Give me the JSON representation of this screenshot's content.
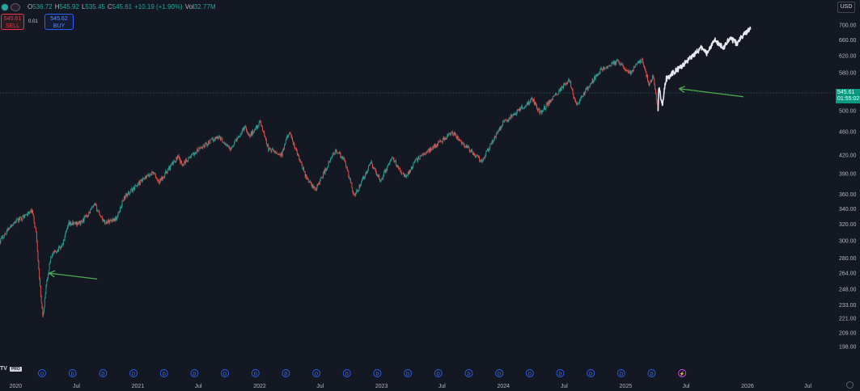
{
  "header": {
    "open_label": "O",
    "open": "536.72",
    "high_label": "H",
    "high": "545.92",
    "low_label": "L",
    "low": "535.45",
    "close_label": "C",
    "close": "545.61",
    "change": "+10.19 (+1.90%)",
    "vol_label": "Vol",
    "vol": "32.77M"
  },
  "trade": {
    "sell_price": "545.61",
    "sell_label": "SELL",
    "quantity": "0.01",
    "buy_price": "545.62",
    "buy_label": "BUY"
  },
  "currency": "USD",
  "current_price": {
    "price": "545.61",
    "countdown": "01:55:02"
  },
  "logo": {
    "text": "TV",
    "badge": "PRO"
  },
  "colors": {
    "bg": "#141823",
    "up": "#26a69a",
    "down": "#ef5350",
    "projection": "#e8e8ee",
    "arrow": "#4caf50",
    "axis_text": "#b2b5be"
  },
  "chart_data": {
    "type": "candlestick",
    "y_scale": "log",
    "ylim": [
      196,
      720
    ],
    "xlim": [
      "2019-11-15",
      "2026-09-15"
    ],
    "y_ticks": [
      "700.00",
      "660.00",
      "620.00",
      "580.00",
      "540.00",
      "500.00",
      "460.00",
      "420.00",
      "390.00",
      "360.00",
      "340.00",
      "320.00",
      "300.00",
      "280.00",
      "264.00",
      "248.00",
      "233.00",
      "221.00",
      "209.00",
      "198.00"
    ],
    "x_ticks": [
      {
        "label": "2020",
        "date": "2020-01-01"
      },
      {
        "label": "Jul",
        "date": "2020-07-01"
      },
      {
        "label": "2021",
        "date": "2021-01-01"
      },
      {
        "label": "Jul",
        "date": "2021-07-01"
      },
      {
        "label": "2022",
        "date": "2022-01-01"
      },
      {
        "label": "Jul",
        "date": "2022-07-01"
      },
      {
        "label": "2023",
        "date": "2023-01-01"
      },
      {
        "label": "Jul",
        "date": "2023-07-01"
      },
      {
        "label": "2024",
        "date": "2024-01-01"
      },
      {
        "label": "Jul",
        "date": "2024-07-01"
      },
      {
        "label": "2025",
        "date": "2025-01-01"
      },
      {
        "label": "Jul",
        "date": "2025-07-01"
      },
      {
        "label": "2026",
        "date": "2026-01-01"
      },
      {
        "label": "Jul",
        "date": "2026-07-01"
      }
    ],
    "price_path": [
      [
        "2019-11-15",
        300
      ],
      [
        "2019-12-20",
        320
      ],
      [
        "2020-02-19",
        337
      ],
      [
        "2020-03-02",
        310
      ],
      [
        "2020-03-09",
        275
      ],
      [
        "2020-03-16",
        240
      ],
      [
        "2020-03-23",
        222
      ],
      [
        "2020-04-01",
        250
      ],
      [
        "2020-04-15",
        282
      ],
      [
        "2020-05-20",
        295
      ],
      [
        "2020-06-08",
        320
      ],
      [
        "2020-07-15",
        322
      ],
      [
        "2020-08-25",
        345
      ],
      [
        "2020-09-23",
        322
      ],
      [
        "2020-10-30",
        328
      ],
      [
        "2020-11-20",
        355
      ],
      [
        "2020-12-31",
        374
      ],
      [
        "2021-02-15",
        393
      ],
      [
        "2021-03-04",
        377
      ],
      [
        "2021-04-30",
        417
      ],
      [
        "2021-05-12",
        405
      ],
      [
        "2021-07-15",
        435
      ],
      [
        "2021-08-30",
        452
      ],
      [
        "2021-10-04",
        430
      ],
      [
        "2021-11-18",
        470
      ],
      [
        "2021-12-01",
        452
      ],
      [
        "2022-01-03",
        478
      ],
      [
        "2022-01-27",
        430
      ],
      [
        "2022-03-08",
        420
      ],
      [
        "2022-03-29",
        460
      ],
      [
        "2022-05-20",
        385
      ],
      [
        "2022-06-16",
        366
      ],
      [
        "2022-08-16",
        428
      ],
      [
        "2022-09-12",
        410
      ],
      [
        "2022-10-12",
        357
      ],
      [
        "2022-11-30",
        407
      ],
      [
        "2022-12-28",
        380
      ],
      [
        "2023-02-02",
        415
      ],
      [
        "2023-03-13",
        385
      ],
      [
        "2023-04-15",
        412
      ],
      [
        "2023-06-15",
        438
      ],
      [
        "2023-07-31",
        458
      ],
      [
        "2023-10-27",
        410
      ],
      [
        "2023-12-29",
        475
      ],
      [
        "2024-03-28",
        523
      ],
      [
        "2024-04-19",
        495
      ],
      [
        "2024-07-16",
        565
      ],
      [
        "2024-08-05",
        510
      ],
      [
        "2024-10-15",
        585
      ],
      [
        "2024-12-06",
        607
      ],
      [
        "2025-01-13",
        580
      ],
      [
        "2025-02-19",
        612
      ],
      [
        "2025-03-13",
        551
      ],
      [
        "2025-03-25",
        575
      ],
      [
        "2025-04-08",
        495
      ]
    ],
    "projection_path": [
      [
        "2025-04-08",
        495
      ],
      [
        "2025-04-10",
        548
      ],
      [
        "2025-04-21",
        513
      ],
      [
        "2025-05-02",
        566
      ],
      [
        "2025-05-21",
        578
      ],
      [
        "2025-06-25",
        600
      ],
      [
        "2025-07-20",
        620
      ],
      [
        "2025-08-15",
        640
      ],
      [
        "2025-09-01",
        625
      ],
      [
        "2025-09-25",
        660
      ],
      [
        "2025-10-20",
        640
      ],
      [
        "2025-11-10",
        665
      ],
      [
        "2025-12-01",
        650
      ],
      [
        "2025-12-20",
        675
      ],
      [
        "2026-01-10",
        690
      ]
    ],
    "current_price": 545.61,
    "annotations": [
      {
        "type": "arrow",
        "from": [
          "2020-09-01",
          258
        ],
        "to": [
          "2020-04-10",
          264
        ]
      },
      {
        "type": "arrow",
        "from": [
          "2025-12-20",
          528
        ],
        "to": [
          "2025-06-10",
          545
        ]
      }
    ],
    "event_markers": 22,
    "grid": false
  }
}
